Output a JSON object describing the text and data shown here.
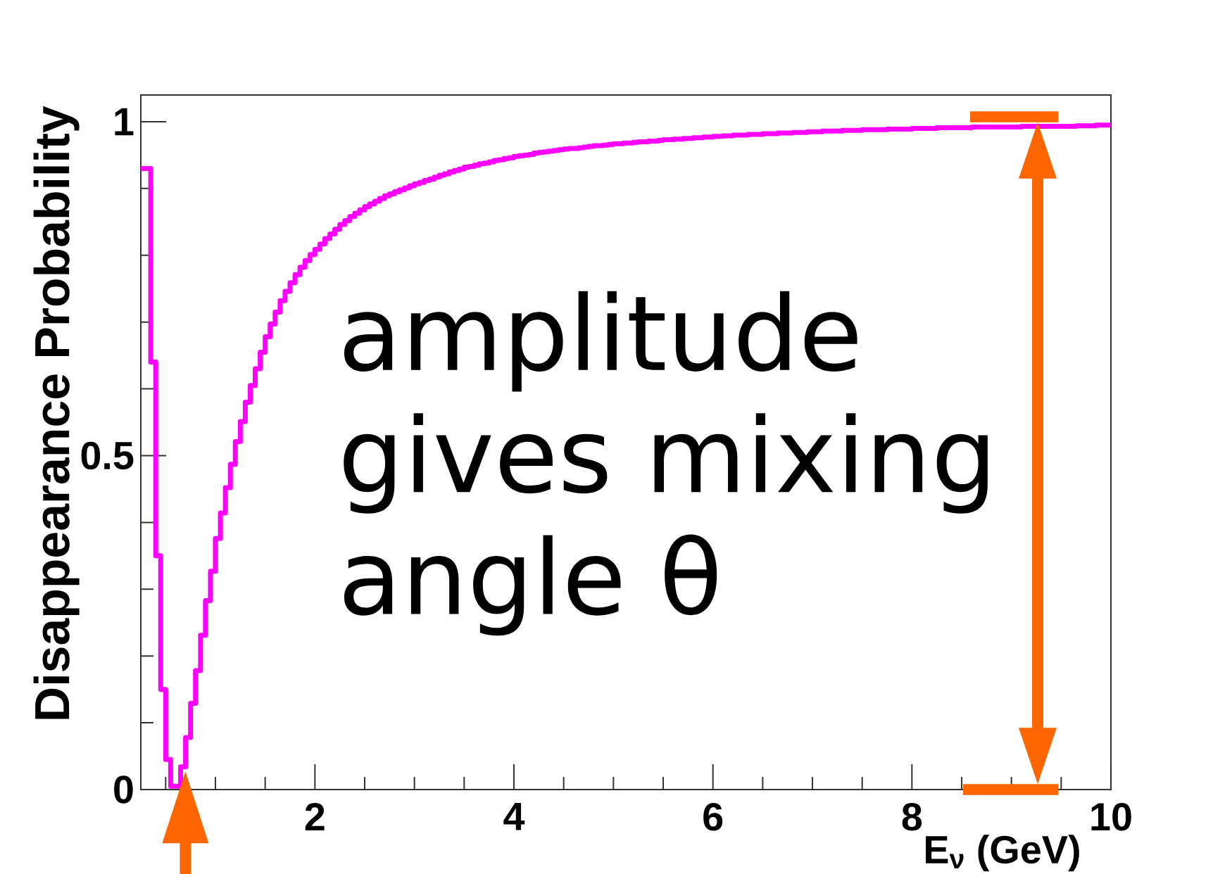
{
  "chart_data": {
    "type": "histogram",
    "xlabel": "E$_{ν}$ (GeV)",
    "ylabel": "Disappearance Probability",
    "annotations": [
      "amplitude gives mixing angle θ"
    ],
    "color": "#ff00ff",
    "bins": [
      0.25,
      0.3,
      0.35,
      0.4,
      0.45,
      0.5,
      0.55,
      0.6,
      0.65,
      0.7,
      0.75,
      0.8,
      0.85,
      0.9,
      0.95,
      1,
      1.05,
      1.1,
      1.15,
      1.2,
      1.25,
      1.3,
      1.35,
      1.4,
      1.45,
      1.5,
      1.55,
      1.6,
      1.65,
      1.7,
      1.75,
      1.8,
      1.85,
      1.9,
      1.95,
      2,
      2.05,
      2.1,
      2.15,
      2.2,
      2.25,
      2.3,
      2.35,
      2.4,
      2.45,
      2.5,
      2.55,
      2.6,
      2.65,
      2.7,
      2.75,
      2.8,
      2.85,
      2.9,
      2.95,
      3,
      3.05,
      3.1,
      3.15,
      3.2,
      3.25,
      3.3,
      3.35,
      3.4,
      3.45,
      3.5,
      3.55,
      3.6,
      3.65,
      3.7,
      3.75,
      3.8,
      3.85,
      3.9,
      3.95,
      4,
      4.05,
      4.1,
      4.15,
      4.2,
      4.25,
      4.3,
      4.35,
      4.4,
      4.45,
      4.5,
      4.55,
      4.6,
      4.65,
      4.7,
      4.75,
      4.8,
      4.85,
      4.9,
      4.95,
      5,
      5.05,
      5.1,
      5.15,
      5.2,
      5.25,
      5.3,
      5.35,
      5.4,
      5.45,
      5.5,
      5.55,
      5.6,
      5.65,
      5.7,
      5.75,
      5.8,
      5.85,
      5.9,
      5.95,
      6,
      6.05,
      6.1,
      6.15,
      6.2,
      6.25,
      6.3,
      6.35,
      6.4,
      6.45,
      6.5,
      6.55,
      6.6,
      6.65,
      6.7,
      6.75,
      6.8,
      6.85,
      6.9,
      6.95,
      7,
      7.05,
      7.1,
      7.15,
      7.2,
      7.25,
      7.3,
      7.35,
      7.4,
      7.45,
      7.5,
      7.55,
      7.6,
      7.65,
      7.7,
      7.75,
      7.8,
      7.85,
      7.9,
      7.95,
      8,
      8.05,
      8.1,
      8.15,
      8.2,
      8.25,
      8.3,
      8.35,
      8.4,
      8.45,
      8.5,
      8.55,
      8.6,
      8.65,
      8.7,
      8.75,
      8.8,
      8.85,
      8.9,
      8.95,
      9,
      9.05,
      9.1,
      9.15,
      9.2,
      9.25,
      9.3,
      9.35,
      9.4,
      9.45,
      9.5,
      9.55,
      9.6,
      9.65,
      9.7,
      9.75,
      9.8,
      9.85,
      9.9,
      9.95,
      10
    ],
    "values": [
      0.93,
      0.93,
      0.64,
      0.35,
      0.15,
      0.045,
      0.005,
      0.005,
      0.034,
      0.078,
      0.129,
      0.178,
      0.231,
      0.283,
      0.327,
      0.376,
      0.414,
      0.452,
      0.487,
      0.521,
      0.551,
      0.58,
      0.605,
      0.63,
      0.655,
      0.678,
      0.697,
      0.715,
      0.732,
      0.746,
      0.759,
      0.771,
      0.782,
      0.792,
      0.801,
      0.809,
      0.817,
      0.825,
      0.832,
      0.839,
      0.846,
      0.852,
      0.858,
      0.863,
      0.868,
      0.873,
      0.877,
      0.881,
      0.885,
      0.889,
      0.892,
      0.895,
      0.898,
      0.901,
      0.904,
      0.907,
      0.909,
      0.912,
      0.914,
      0.917,
      0.92,
      0.922,
      0.925,
      0.927,
      0.929,
      0.932,
      0.933,
      0.935,
      0.937,
      0.938,
      0.94,
      0.942,
      0.943,
      0.945,
      0.946,
      0.948,
      0.949,
      0.95,
      0.951,
      0.953,
      0.954,
      0.955,
      0.956,
      0.957,
      0.958,
      0.959,
      0.96,
      0.96,
      0.961,
      0.962,
      0.963,
      0.964,
      0.964,
      0.965,
      0.966,
      0.967,
      0.967,
      0.968,
      0.968,
      0.969,
      0.97,
      0.97,
      0.971,
      0.971,
      0.972,
      0.973,
      0.973,
      0.974,
      0.974,
      0.975,
      0.975,
      0.976,
      0.976,
      0.977,
      0.977,
      0.978,
      0.978,
      0.979,
      0.979,
      0.98,
      0.98,
      0.98,
      0.981,
      0.981,
      0.981,
      0.982,
      0.982,
      0.982,
      0.983,
      0.983,
      0.983,
      0.984,
      0.984,
      0.984,
      0.985,
      0.985,
      0.985,
      0.986,
      0.986,
      0.986,
      0.986,
      0.987,
      0.987,
      0.987,
      0.987,
      0.988,
      0.988,
      0.988,
      0.988,
      0.988,
      0.989,
      0.989,
      0.989,
      0.989,
      0.989,
      0.99,
      0.99,
      0.99,
      0.99,
      0.99,
      0.991,
      0.991,
      0.991,
      0.991,
      0.991,
      0.991,
      0.991,
      0.992,
      0.992,
      0.992,
      0.992,
      0.992,
      0.992,
      0.992,
      0.992,
      0.992,
      0.992,
      0.993,
      0.993,
      0.993,
      0.993,
      0.993,
      0.993,
      0.993,
      0.993,
      0.993,
      0.993,
      0.993,
      0.994,
      0.994,
      0.994,
      0.994,
      0.995,
      0.995,
      0.995
    ],
    "xlim": [
      0.25,
      10
    ],
    "ylim": [
      0,
      1.04
    ],
    "xticks": [
      {
        "value": 0.5,
        "label": null
      },
      {
        "value": 1,
        "label": null
      },
      {
        "value": 1.5,
        "label": null
      },
      2,
      {
        "value": 2.5,
        "label": null
      },
      {
        "value": 3,
        "label": null
      },
      {
        "value": 3.5,
        "label": null
      },
      4,
      {
        "value": 4.5,
        "label": null
      },
      {
        "value": 5,
        "label": null
      },
      {
        "value": 5.5,
        "label": null
      },
      6,
      {
        "value": 6.5,
        "label": null
      },
      {
        "value": 7,
        "label": null
      },
      {
        "value": 7.5,
        "label": null
      },
      8,
      {
        "value": 8.5,
        "label": null
      },
      {
        "value": 9,
        "label": null
      },
      {
        "value": 9.5,
        "label": null
      },
      10
    ],
    "yticks": [
      0,
      {
        "value": 0.1,
        "label": null
      },
      {
        "value": 0.2,
        "label": null
      },
      {
        "value": 0.3,
        "label": null
      },
      {
        "value": 0.4,
        "label": null
      },
      0.5,
      {
        "value": 0.6,
        "label": null
      },
      {
        "value": 0.7,
        "label": null
      },
      {
        "value": 0.8,
        "label": null
      },
      {
        "value": 0.9,
        "label": null
      },
      1
    ]
  }
}
